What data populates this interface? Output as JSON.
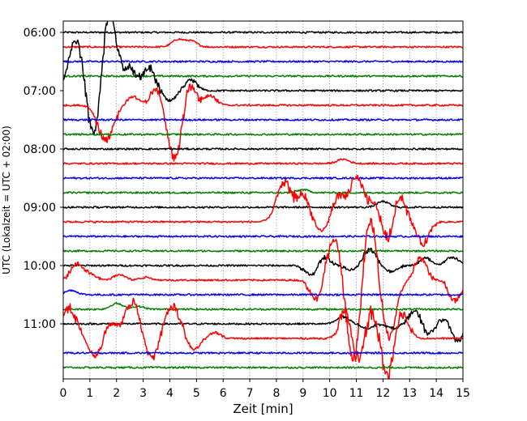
{
  "chart_data": {
    "type": "line",
    "title": "",
    "xlabel": "Zeit  [min]",
    "ylabel": "UTC (Lokalzeit = UTC + 02:00)",
    "xlim": [
      0,
      15
    ],
    "x_ticks": [
      "0",
      "1",
      "2",
      "3",
      "4",
      "5",
      "6",
      "7",
      "8",
      "9",
      "10",
      "11",
      "12",
      "13",
      "14",
      "15"
    ],
    "y_ticks": [
      "06:00",
      "07:00",
      "08:00",
      "09:00",
      "10:00",
      "11:00"
    ],
    "time_start": "06:00",
    "time_end": "11:45",
    "trace_interval_minutes": 15,
    "grid": "vertical dotted at each minute",
    "trace_colors": [
      "#000000",
      "#ff0000",
      "#0000ff",
      "#008000"
    ],
    "series": [
      {
        "time": "06:00",
        "color": "#000000",
        "activity": "quiet"
      },
      {
        "time": "06:15",
        "color": "#ff0000",
        "activity": "small",
        "events": [
          [
            4.3,
            0.5
          ],
          [
            4.8,
            0.4
          ]
        ]
      },
      {
        "time": "06:30",
        "color": "#0000ff",
        "activity": "quiet"
      },
      {
        "time": "06:45",
        "color": "#008000",
        "activity": "quiet"
      },
      {
        "time": "07:00",
        "color": "#000000",
        "activity": "large",
        "events": [
          [
            0.5,
            3.5
          ],
          [
            1.2,
            -4.0
          ],
          [
            1.7,
            6.0
          ],
          [
            2.5,
            1.5
          ],
          [
            3.2,
            1.6
          ],
          [
            4.0,
            -0.7
          ],
          [
            4.8,
            0.7
          ]
        ]
      },
      {
        "time": "07:15",
        "color": "#ff0000",
        "activity": "large",
        "events": [
          [
            1.6,
            -2.5
          ],
          [
            2.6,
            0.6
          ],
          [
            3.5,
            1.2
          ],
          [
            4.2,
            -3.7
          ],
          [
            4.7,
            1.8
          ],
          [
            5.5,
            0.7
          ]
        ]
      },
      {
        "time": "07:30",
        "color": "#0000ff",
        "activity": "quiet"
      },
      {
        "time": "07:45",
        "color": "#008000",
        "activity": "quiet"
      },
      {
        "time": "08:00",
        "color": "#000000",
        "activity": "quiet"
      },
      {
        "time": "08:15",
        "color": "#ff0000",
        "activity": "small",
        "events": [
          [
            10.5,
            0.3
          ]
        ]
      },
      {
        "time": "08:30",
        "color": "#0000ff",
        "activity": "quiet"
      },
      {
        "time": "08:45",
        "color": "#008000",
        "activity": "small",
        "events": [
          [
            9.0,
            0.2
          ]
        ]
      },
      {
        "time": "09:00",
        "color": "#000000",
        "activity": "small",
        "events": [
          [
            12.0,
            0.4
          ]
        ]
      },
      {
        "time": "09:15",
        "color": "#ff0000",
        "activity": "large",
        "events": [
          [
            8.3,
            2.7
          ],
          [
            9.0,
            1.8
          ],
          [
            9.7,
            -0.7
          ],
          [
            10.3,
            1.6
          ],
          [
            11.0,
            3.0
          ],
          [
            11.7,
            1.2
          ],
          [
            12.2,
            -1.5
          ],
          [
            12.6,
            2.0
          ],
          [
            13.5,
            -1.5
          ]
        ]
      },
      {
        "time": "09:30",
        "color": "#0000ff",
        "activity": "quiet"
      },
      {
        "time": "09:45",
        "color": "#008000",
        "activity": "quiet"
      },
      {
        "time": "10:00",
        "color": "#000000",
        "activity": "large",
        "events": [
          [
            9.3,
            -0.7
          ],
          [
            9.8,
            0.6
          ],
          [
            10.8,
            -0.3
          ],
          [
            11.5,
            1.1
          ],
          [
            12.3,
            -0.4
          ],
          [
            13.6,
            0.5
          ],
          [
            14.6,
            0.6
          ]
        ]
      },
      {
        "time": "10:15",
        "color": "#ff0000",
        "activity": "large",
        "events": [
          [
            0.5,
            1.1
          ],
          [
            1.0,
            0.4
          ],
          [
            2.1,
            0.4
          ],
          [
            3.1,
            0.2
          ],
          [
            9.5,
            -1.4
          ],
          [
            10.2,
            3.0
          ],
          [
            10.9,
            -6.0
          ],
          [
            11.5,
            4.7
          ],
          [
            12.2,
            -4.0
          ],
          [
            13.4,
            1.5
          ],
          [
            14.7,
            -1.4
          ]
        ]
      },
      {
        "time": "10:30",
        "color": "#0000ff",
        "activity": "small",
        "events": [
          [
            0.3,
            0.3
          ]
        ]
      },
      {
        "time": "10:45",
        "color": "#008000",
        "activity": "small",
        "events": [
          [
            2.0,
            0.4
          ],
          [
            2.8,
            0.2
          ]
        ]
      },
      {
        "time": "11:00",
        "color": "#000000",
        "activity": "large",
        "events": [
          [
            10.5,
            0.5
          ],
          [
            11.4,
            -0.3
          ],
          [
            12.4,
            -0.3
          ],
          [
            13.2,
            0.9
          ],
          [
            13.7,
            -0.7
          ],
          [
            14.3,
            0.4
          ],
          [
            14.8,
            -1.2
          ]
        ]
      },
      {
        "time": "11:15",
        "color": "#ff0000",
        "activity": "large",
        "events": [
          [
            0.2,
            2.1
          ],
          [
            1.2,
            -1.2
          ],
          [
            1.8,
            1.0
          ],
          [
            2.6,
            2.5
          ],
          [
            3.3,
            -1.5
          ],
          [
            4.1,
            2.2
          ],
          [
            4.9,
            -0.8
          ],
          [
            5.7,
            0.4
          ],
          [
            10.6,
            2.0
          ],
          [
            11.1,
            -2.0
          ],
          [
            11.6,
            2.2
          ],
          [
            12.2,
            -3.5
          ],
          [
            12.6,
            2.5
          ]
        ]
      },
      {
        "time": "11:30",
        "color": "#0000ff",
        "activity": "quiet"
      },
      {
        "time": "11:45",
        "color": "#008000",
        "activity": "quiet"
      }
    ]
  }
}
